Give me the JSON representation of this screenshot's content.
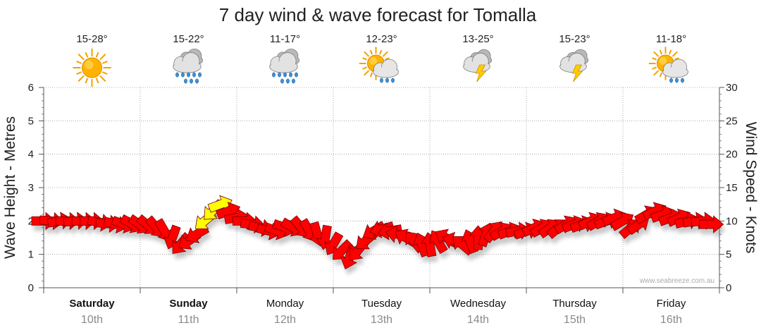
{
  "page": {
    "title": "7 day wind & wave forecast for Tomalla",
    "credit": "www.seabreeze.com.au"
  },
  "days": [
    {
      "name": "Saturday",
      "date": "10th",
      "temp": "15-28°",
      "icon": "sunny-icon",
      "bold": true
    },
    {
      "name": "Sunday",
      "date": "11th",
      "temp": "15-22°",
      "icon": "rain-icon",
      "bold": true
    },
    {
      "name": "Monday",
      "date": "12th",
      "temp": "11-17°",
      "icon": "rain-icon",
      "bold": false
    },
    {
      "name": "Tuesday",
      "date": "13th",
      "temp": "12-23°",
      "icon": "sun-shower-icon",
      "bold": false
    },
    {
      "name": "Wednesday",
      "date": "14th",
      "temp": "13-25°",
      "icon": "storm-icon",
      "bold": false
    },
    {
      "name": "Thursday",
      "date": "15th",
      "temp": "15-23°",
      "icon": "storm-icon",
      "bold": false
    },
    {
      "name": "Friday",
      "date": "16th",
      "temp": "11-18°",
      "icon": "sun-shower-icon",
      "bold": false
    }
  ],
  "colors": {
    "arrow": "#ff0000",
    "arrow_stroke": "#7a0000",
    "arrow_highlight": "#ffff00",
    "grid": "#9a9a9a",
    "axis": "#555555"
  },
  "chart_data": {
    "type": "scatter",
    "title": "7 day wind & wave forecast for Tomalla",
    "ylabel": "Wave Height - Metres",
    "y2label": "Wind Speed - Knots",
    "ylim": [
      0,
      6
    ],
    "y2lim": [
      0,
      30
    ],
    "yticks": [
      0,
      1,
      2,
      3,
      4,
      5,
      6
    ],
    "y2ticks": [
      0,
      5,
      10,
      15,
      20,
      25,
      30
    ],
    "x_unit": "hours from Saturday 00:00",
    "xlim": [
      0,
      168
    ],
    "categories": [
      "Saturday",
      "Sunday",
      "Monday",
      "Tuesday",
      "Wednesday",
      "Thursday",
      "Friday"
    ],
    "series": [
      {
        "name": "Wind speed (knots) and direction (arrows)",
        "x": [
          0,
          2,
          4,
          6,
          8,
          10,
          12,
          14,
          16,
          18,
          20,
          22,
          24,
          26,
          28,
          30,
          32,
          34,
          36,
          38,
          40,
          42,
          44,
          46,
          48,
          50,
          52,
          54,
          56,
          58,
          60,
          62,
          64,
          66,
          68,
          70,
          72,
          74,
          76,
          78,
          80,
          82,
          84,
          86,
          88,
          90,
          92,
          94,
          96,
          98,
          100,
          102,
          104,
          106,
          108,
          110,
          112,
          114,
          116,
          118,
          120,
          122,
          124,
          126,
          128,
          130,
          132,
          134,
          136,
          138,
          140,
          142,
          144,
          146,
          148,
          150,
          152,
          154,
          156,
          158,
          160,
          162,
          164,
          166
        ],
        "y": [
          10,
          10,
          10,
          10,
          10,
          10,
          10,
          9.8,
          9.6,
          9.5,
          9.5,
          9.5,
          9.4,
          9.3,
          9,
          8.5,
          7.5,
          6.5,
          7,
          8,
          10,
          11.5,
          12.5,
          11.5,
          10.5,
          10,
          9.5,
          9,
          8.5,
          8.5,
          9,
          9,
          9,
          8.5,
          8,
          7.5,
          6.5,
          5.5,
          4.5,
          5.5,
          7,
          8.5,
          8.8,
          8.5,
          8,
          7.5,
          7,
          6.5,
          6.5,
          7,
          7.5,
          7,
          6.5,
          7,
          7.5,
          8,
          8.5,
          8.5,
          8.5,
          8.5,
          8.5,
          9,
          9,
          9,
          9,
          9.5,
          9.5,
          9.5,
          10,
          10,
          10,
          10.5,
          10,
          9,
          9.5,
          11,
          11.5,
          11,
          10.5,
          10.5,
          10,
          10,
          10,
          9.5
        ],
        "dir": [
          270,
          275,
          260,
          270,
          265,
          270,
          270,
          280,
          275,
          285,
          290,
          300,
          305,
          310,
          320,
          330,
          20,
          40,
          55,
          60,
          50,
          45,
          250,
          250,
          260,
          270,
          275,
          280,
          285,
          290,
          290,
          300,
          320,
          330,
          345,
          10,
          30,
          45,
          20,
          40,
          50,
          60,
          75,
          80,
          100,
          120,
          140,
          160,
          170,
          150,
          120,
          110,
          130,
          160,
          180,
          200,
          220,
          240,
          250,
          260,
          250,
          245,
          240,
          235,
          230,
          240,
          250,
          250,
          245,
          240,
          250,
          250,
          240,
          230,
          235,
          240,
          245,
          250,
          250,
          245,
          255,
          260,
          265,
          270
        ],
        "highlight": [
          20,
          21,
          22
        ]
      }
    ]
  }
}
